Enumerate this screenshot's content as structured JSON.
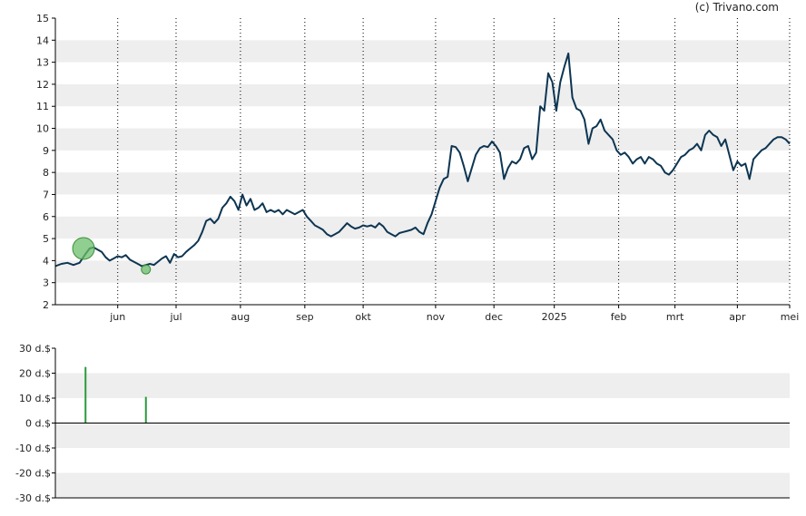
{
  "copyright": "(c) Trivano.com",
  "colors": {
    "price_line": "#0d3552",
    "band": "#eeeeee",
    "axis": "#000000",
    "grid_v": "#000000",
    "marker_fill": "#6bbf6b",
    "marker_stroke": "#3d8f3d",
    "dividend_bar": "#2a9a3a"
  },
  "chart_data": [
    {
      "type": "line",
      "ylim": [
        2,
        15
      ],
      "yticks": [
        2,
        3,
        4,
        5,
        6,
        7,
        8,
        9,
        10,
        11,
        12,
        13,
        14,
        15
      ],
      "xlim": [
        0,
        365
      ],
      "x_tick_labels": [
        "jun",
        "jul",
        "aug",
        "sep",
        "okt",
        "nov",
        "dec",
        "2025",
        "feb",
        "mrt",
        "apr",
        "mei"
      ],
      "x_tick_positions": [
        31,
        60,
        92,
        124,
        153,
        189,
        218,
        248,
        280,
        308,
        339,
        366
      ],
      "grid_vertical": "dotted",
      "series": [
        {
          "values": [
            [
              0,
              3.75
            ],
            [
              3,
              3.85
            ],
            [
              6,
              3.9
            ],
            [
              9,
              3.8
            ],
            [
              12,
              3.9
            ],
            [
              15,
              4.3
            ],
            [
              17,
              4.55
            ],
            [
              19,
              4.6
            ],
            [
              21,
              4.5
            ],
            [
              23,
              4.4
            ],
            [
              25,
              4.15
            ],
            [
              27,
              4.0
            ],
            [
              29,
              4.1
            ],
            [
              31,
              4.2
            ],
            [
              33,
              4.15
            ],
            [
              35,
              4.25
            ],
            [
              37,
              4.05
            ],
            [
              39,
              3.95
            ],
            [
              41,
              3.85
            ],
            [
              43,
              3.75
            ],
            [
              45,
              3.8
            ],
            [
              47,
              3.85
            ],
            [
              49,
              3.8
            ],
            [
              51,
              3.95
            ],
            [
              53,
              4.1
            ],
            [
              55,
              4.2
            ],
            [
              57,
              3.9
            ],
            [
              59,
              4.3
            ],
            [
              61,
              4.15
            ],
            [
              63,
              4.2
            ],
            [
              65,
              4.4
            ],
            [
              67,
              4.55
            ],
            [
              69,
              4.7
            ],
            [
              71,
              4.9
            ],
            [
              73,
              5.3
            ],
            [
              75,
              5.8
            ],
            [
              77,
              5.9
            ],
            [
              79,
              5.7
            ],
            [
              81,
              5.9
            ],
            [
              83,
              6.4
            ],
            [
              85,
              6.6
            ],
            [
              87,
              6.9
            ],
            [
              89,
              6.7
            ],
            [
              91,
              6.3
            ],
            [
              93,
              7.0
            ],
            [
              95,
              6.5
            ],
            [
              97,
              6.8
            ],
            [
              99,
              6.3
            ],
            [
              101,
              6.4
            ],
            [
              103,
              6.6
            ],
            [
              105,
              6.2
            ],
            [
              107,
              6.3
            ],
            [
              109,
              6.2
            ],
            [
              111,
              6.3
            ],
            [
              113,
              6.1
            ],
            [
              115,
              6.3
            ],
            [
              117,
              6.2
            ],
            [
              119,
              6.1
            ],
            [
              121,
              6.2
            ],
            [
              123,
              6.3
            ],
            [
              125,
              6.0
            ],
            [
              127,
              5.8
            ],
            [
              129,
              5.6
            ],
            [
              131,
              5.5
            ],
            [
              133,
              5.4
            ],
            [
              135,
              5.2
            ],
            [
              137,
              5.1
            ],
            [
              139,
              5.2
            ],
            [
              141,
              5.3
            ],
            [
              143,
              5.5
            ],
            [
              145,
              5.7
            ],
            [
              147,
              5.55
            ],
            [
              149,
              5.45
            ],
            [
              151,
              5.5
            ],
            [
              153,
              5.6
            ],
            [
              155,
              5.55
            ],
            [
              157,
              5.6
            ],
            [
              159,
              5.5
            ],
            [
              161,
              5.7
            ],
            [
              163,
              5.55
            ],
            [
              165,
              5.3
            ],
            [
              167,
              5.2
            ],
            [
              169,
              5.1
            ],
            [
              171,
              5.25
            ],
            [
              173,
              5.3
            ],
            [
              175,
              5.35
            ],
            [
              177,
              5.4
            ],
            [
              179,
              5.5
            ],
            [
              181,
              5.3
            ],
            [
              183,
              5.2
            ],
            [
              185,
              5.7
            ],
            [
              187,
              6.1
            ],
            [
              189,
              6.7
            ],
            [
              191,
              7.3
            ],
            [
              193,
              7.7
            ],
            [
              195,
              7.8
            ],
            [
              197,
              9.2
            ],
            [
              199,
              9.15
            ],
            [
              201,
              8.9
            ],
            [
              203,
              8.3
            ],
            [
              205,
              7.6
            ],
            [
              207,
              8.2
            ],
            [
              209,
              8.8
            ],
            [
              211,
              9.1
            ],
            [
              213,
              9.2
            ],
            [
              215,
              9.15
            ],
            [
              217,
              9.4
            ],
            [
              219,
              9.2
            ],
            [
              221,
              8.9
            ],
            [
              223,
              7.7
            ],
            [
              225,
              8.2
            ],
            [
              227,
              8.5
            ],
            [
              229,
              8.4
            ],
            [
              231,
              8.6
            ],
            [
              233,
              9.1
            ],
            [
              235,
              9.2
            ],
            [
              237,
              8.6
            ],
            [
              239,
              8.9
            ],
            [
              241,
              11.0
            ],
            [
              243,
              10.8
            ],
            [
              245,
              12.5
            ],
            [
              247,
              12.1
            ],
            [
              249,
              10.8
            ],
            [
              251,
              12.1
            ],
            [
              253,
              12.8
            ],
            [
              255,
              13.4
            ],
            [
              257,
              11.4
            ],
            [
              259,
              10.9
            ],
            [
              261,
              10.8
            ],
            [
              263,
              10.4
            ],
            [
              265,
              9.3
            ],
            [
              267,
              10.0
            ],
            [
              269,
              10.1
            ],
            [
              271,
              10.4
            ],
            [
              273,
              9.9
            ],
            [
              275,
              9.7
            ],
            [
              277,
              9.5
            ],
            [
              279,
              9.0
            ],
            [
              281,
              8.8
            ],
            [
              283,
              8.9
            ],
            [
              285,
              8.7
            ],
            [
              287,
              8.4
            ],
            [
              289,
              8.6
            ],
            [
              291,
              8.7
            ],
            [
              293,
              8.4
            ],
            [
              295,
              8.7
            ],
            [
              297,
              8.6
            ],
            [
              299,
              8.4
            ],
            [
              301,
              8.3
            ],
            [
              303,
              8.0
            ],
            [
              305,
              7.9
            ],
            [
              307,
              8.1
            ],
            [
              309,
              8.4
            ],
            [
              311,
              8.7
            ],
            [
              313,
              8.8
            ],
            [
              315,
              9.0
            ],
            [
              317,
              9.1
            ],
            [
              319,
              9.3
            ],
            [
              321,
              9.0
            ],
            [
              323,
              9.7
            ],
            [
              325,
              9.9
            ],
            [
              327,
              9.7
            ],
            [
              329,
              9.6
            ],
            [
              331,
              9.2
            ],
            [
              333,
              9.5
            ],
            [
              335,
              8.8
            ],
            [
              337,
              8.1
            ],
            [
              339,
              8.5
            ],
            [
              341,
              8.3
            ],
            [
              343,
              8.4
            ],
            [
              345,
              7.7
            ],
            [
              347,
              8.6
            ],
            [
              349,
              8.8
            ],
            [
              351,
              9.0
            ],
            [
              353,
              9.1
            ],
            [
              355,
              9.3
            ],
            [
              357,
              9.5
            ],
            [
              359,
              9.6
            ],
            [
              361,
              9.6
            ],
            [
              363,
              9.5
            ],
            [
              365,
              9.3
            ]
          ]
        }
      ],
      "markers": [
        {
          "x": 14,
          "y": 4.55,
          "size": "large"
        },
        {
          "x": 45,
          "y": 3.6,
          "size": "small"
        }
      ]
    },
    {
      "type": "bar",
      "ylim": [
        -30,
        30
      ],
      "y_tick_labels": [
        "30 d.$",
        "20 d.$",
        "10 d.$",
        "0 d.$",
        "-10 d.$",
        "-20 d.$",
        "-30 d.$"
      ],
      "y_tick_values": [
        30,
        20,
        10,
        0,
        -10,
        -20,
        -30
      ],
      "xlim": [
        0,
        365
      ],
      "bars": [
        {
          "x": 15,
          "value": 22.5
        },
        {
          "x": 45,
          "value": 10.5
        }
      ]
    }
  ]
}
